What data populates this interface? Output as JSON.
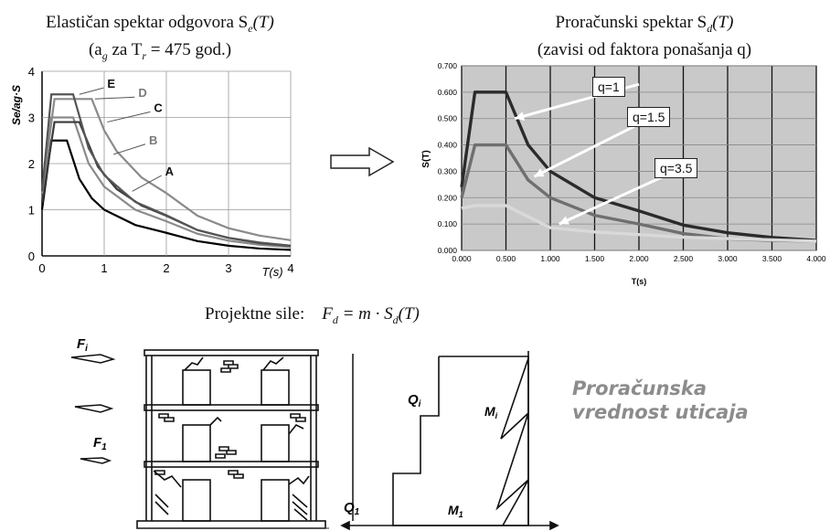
{
  "left_panel": {
    "title_line1": "Elastičan spektar odgovora S",
    "title_line1_sub": "e",
    "title_line1_tail": "(T)",
    "title_line2": "(a",
    "title_line2_sub1": "g",
    "title_line2_mid": " za T",
    "title_line2_sub2": "r",
    "title_line2_tail": " = 475 god.)",
    "ylabel": "Se/ag·S",
    "xlabel": "T(s)",
    "x_ticks": [
      "0",
      "1",
      "2",
      "3",
      "4"
    ],
    "y_ticks": [
      "0",
      "1",
      "2",
      "3",
      "4"
    ],
    "curve_labels": [
      "E",
      "D",
      "C",
      "B",
      "A"
    ]
  },
  "right_panel": {
    "title_line1": "Proračunski spektar S",
    "title_line1_sub": "d",
    "title_line1_tail": "(T)",
    "title_line2": "(zavisi od faktora ponašanja q)",
    "ylabel": "S(T)",
    "xlabel": "T(s)",
    "x_ticks": [
      "0.000",
      "0.500",
      "1.000",
      "1.500",
      "2.000",
      "2.500",
      "3.000",
      "3.500",
      "4.000"
    ],
    "y_ticks": [
      "0.000",
      "0.100",
      "0.200",
      "0.300",
      "0.400",
      "0.500",
      "0.600",
      "0.700"
    ],
    "callouts": [
      "q=1",
      "q=1.5",
      "q=3.5"
    ]
  },
  "bottom": {
    "formula_label": "Projektne sile:",
    "formula_lhs": "F",
    "formula_lhs_sub": "d",
    "formula_rhs": " = m · S",
    "formula_rhs_sub": "d",
    "formula_tail": "(T)",
    "force_top": "F",
    "force_top_sub": "i",
    "force_bottom": "F",
    "force_bottom_sub": "1",
    "shear_top": "Q",
    "shear_top_sub": "i",
    "shear_bottom": "Q",
    "shear_bottom_sub": "1",
    "moment_top": "M",
    "moment_top_sub": "i",
    "moment_bottom": "M",
    "moment_bottom_sub": "1",
    "inscription_line1": "Proračunska",
    "inscription_line2": "vrednost uticaja"
  },
  "colors": {
    "plot_bg": "#c9c9c9",
    "q1": "#2b2b2b",
    "q15": "#6f6f6f",
    "q35": "#d9d9d9",
    "inscription": "#8c8c8c"
  },
  "chart_data": [
    {
      "type": "line",
      "xlabel": "T(s)",
      "ylabel": "Se/ag·S",
      "xlim": [
        0,
        4
      ],
      "ylim": [
        0,
        4
      ],
      "grid": true,
      "series": [
        {
          "name": "A",
          "x": [
            0,
            0.15,
            0.4,
            0.6,
            0.8,
            1.0,
            1.5,
            2.0,
            2.5,
            3.0,
            3.5,
            4.0
          ],
          "values": [
            1.0,
            2.5,
            2.5,
            1.67,
            1.25,
            1.0,
            0.67,
            0.5,
            0.32,
            0.22,
            0.16,
            0.13
          ]
        },
        {
          "name": "B",
          "x": [
            0,
            0.15,
            0.5,
            0.75,
            1.0,
            1.5,
            2.0,
            2.5,
            3.0,
            3.5,
            4.0
          ],
          "values": [
            1.2,
            3.0,
            3.0,
            2.0,
            1.5,
            1.0,
            0.75,
            0.48,
            0.33,
            0.24,
            0.19
          ]
        },
        {
          "name": "C",
          "x": [
            0,
            0.2,
            0.6,
            0.9,
            1.2,
            1.6,
            2.0,
            2.5,
            3.0,
            3.5,
            4.0
          ],
          "values": [
            1.15,
            2.9,
            2.9,
            1.93,
            1.45,
            1.09,
            0.87,
            0.56,
            0.39,
            0.28,
            0.22
          ]
        },
        {
          "name": "D",
          "x": [
            0,
            0.2,
            0.8,
            1.0,
            1.2,
            1.6,
            2.0,
            2.5,
            3.0,
            3.5,
            4.0
          ],
          "values": [
            1.35,
            3.4,
            3.4,
            2.72,
            2.27,
            1.7,
            1.36,
            0.87,
            0.6,
            0.44,
            0.34
          ]
        },
        {
          "name": "E",
          "x": [
            0,
            0.15,
            0.5,
            0.75,
            1.0,
            1.5,
            2.0,
            2.5,
            3.0,
            3.5,
            4.0
          ],
          "values": [
            1.4,
            3.5,
            3.5,
            2.33,
            1.75,
            1.17,
            0.88,
            0.56,
            0.39,
            0.29,
            0.22
          ]
        }
      ]
    },
    {
      "type": "line",
      "xlabel": "T(s)",
      "ylabel": "S(T)",
      "xlim": [
        0,
        4
      ],
      "ylim": [
        0,
        0.7
      ],
      "grid": true,
      "series": [
        {
          "name": "q=1",
          "x": [
            0,
            0.15,
            0.5,
            0.75,
            1.0,
            1.5,
            2.0,
            2.5,
            3.0,
            3.5,
            4.0
          ],
          "values": [
            0.24,
            0.6,
            0.6,
            0.4,
            0.3,
            0.2,
            0.15,
            0.096,
            0.067,
            0.049,
            0.038
          ]
        },
        {
          "name": "q=1.5",
          "x": [
            0,
            0.15,
            0.5,
            0.75,
            1.0,
            1.5,
            2.0,
            2.5,
            3.0,
            3.5,
            4.0
          ],
          "values": [
            0.2,
            0.4,
            0.4,
            0.267,
            0.2,
            0.133,
            0.1,
            0.064,
            0.044,
            0.038,
            0.035
          ]
        },
        {
          "name": "q=3.5",
          "x": [
            0,
            0.15,
            0.5,
            1.0,
            1.5,
            2.0,
            2.5,
            3.0,
            3.5,
            4.0
          ],
          "values": [
            0.16,
            0.17,
            0.17,
            0.086,
            0.07,
            0.06,
            0.05,
            0.045,
            0.04,
            0.035
          ]
        }
      ]
    }
  ]
}
